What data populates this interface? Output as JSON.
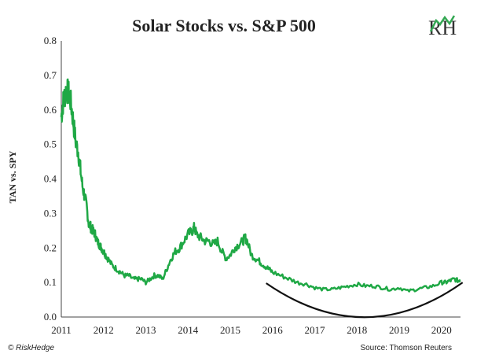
{
  "chart_data": {
    "type": "line",
    "title": "Solar Stocks vs. S&P 500",
    "xlabel": "",
    "ylabel": "TAN vs. SPY",
    "xlim": [
      2011,
      2020.45
    ],
    "ylim": [
      0,
      0.8
    ],
    "x_ticks": [
      "2011",
      "2012",
      "2013",
      "2014",
      "2015",
      "2016",
      "2017",
      "2018",
      "2019",
      "2020"
    ],
    "y_ticks": [
      "0.0",
      "0.1",
      "0.2",
      "0.3",
      "0.4",
      "0.5",
      "0.6",
      "0.7",
      "0.8"
    ],
    "grid": false,
    "line_color": "#1fa845",
    "series": [
      {
        "x": [
          2011.0,
          2011.04,
          2011.08,
          2011.12,
          2011.16,
          2011.2,
          2011.25,
          2011.3,
          2011.35,
          2011.4,
          2011.45,
          2011.5,
          2011.55,
          2011.6,
          2011.65,
          2011.7,
          2011.75,
          2011.8,
          2011.85,
          2011.9,
          2011.95,
          2012.0,
          2012.05,
          2012.1,
          2012.2,
          2012.3,
          2012.4,
          2012.5,
          2012.6,
          2012.7,
          2012.8,
          2012.9,
          2013.0,
          2013.1,
          2013.2,
          2013.3,
          2013.4,
          2013.5,
          2013.6,
          2013.7,
          2013.8,
          2013.9,
          2014.0,
          2014.1,
          2014.15,
          2014.2,
          2014.3,
          2014.4,
          2014.5,
          2014.6,
          2014.7,
          2014.8,
          2014.9,
          2015.0,
          2015.1,
          2015.2,
          2015.3,
          2015.35,
          2015.4,
          2015.5,
          2015.6,
          2015.7,
          2015.8,
          2015.9,
          2016.0,
          2016.2,
          2016.4,
          2016.6,
          2016.8,
          2017.0,
          2017.2,
          2017.4,
          2017.6,
          2017.8,
          2018.0,
          2018.2,
          2018.4,
          2018.6,
          2018.8,
          2019.0,
          2019.2,
          2019.4,
          2019.6,
          2019.8,
          2020.0,
          2020.1,
          2020.2,
          2020.3,
          2020.4,
          2020.45
        ],
        "y": [
          0.58,
          0.62,
          0.64,
          0.66,
          0.65,
          0.64,
          0.6,
          0.55,
          0.5,
          0.48,
          0.43,
          0.38,
          0.35,
          0.32,
          0.27,
          0.26,
          0.25,
          0.24,
          0.22,
          0.21,
          0.2,
          0.19,
          0.18,
          0.17,
          0.15,
          0.14,
          0.13,
          0.12,
          0.12,
          0.11,
          0.11,
          0.11,
          0.1,
          0.11,
          0.12,
          0.12,
          0.11,
          0.14,
          0.17,
          0.19,
          0.2,
          0.22,
          0.24,
          0.25,
          0.26,
          0.24,
          0.23,
          0.22,
          0.22,
          0.21,
          0.22,
          0.19,
          0.17,
          0.18,
          0.2,
          0.21,
          0.22,
          0.23,
          0.22,
          0.18,
          0.17,
          0.16,
          0.15,
          0.14,
          0.13,
          0.12,
          0.11,
          0.1,
          0.095,
          0.085,
          0.08,
          0.08,
          0.085,
          0.09,
          0.095,
          0.09,
          0.09,
          0.085,
          0.08,
          0.085,
          0.075,
          0.08,
          0.085,
          0.09,
          0.1,
          0.1,
          0.105,
          0.11,
          0.105,
          0.11
        ]
      }
    ],
    "annotation": "curved arc under 2016–2020 (bottoming pattern)",
    "source": "Source: Thomson Reuters",
    "copyright": "© RiskHedge",
    "logo": "RH"
  }
}
